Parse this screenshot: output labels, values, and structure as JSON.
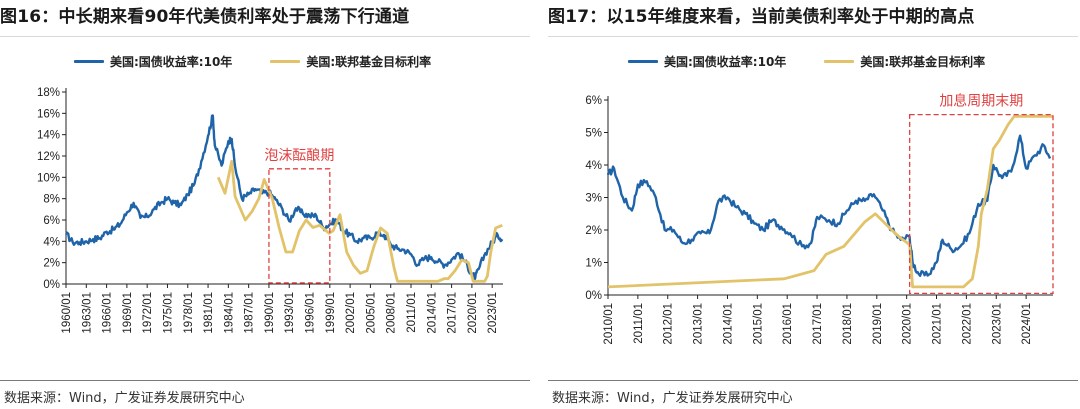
{
  "colors": {
    "ten_year": "#1f64a8",
    "fed_funds": "#e2c36a",
    "annotation": "#e04040"
  },
  "chart_data": [
    {
      "type": "line",
      "title": "图16：中长期来看90年代美债利率处于震荡下行通道",
      "x_tick_labels": [
        "1960/01",
        "1963/01",
        "1966/01",
        "1969/01",
        "1972/01",
        "1975/01",
        "1978/01",
        "1981/01",
        "1984/01",
        "1987/01",
        "1990/01",
        "1993/01",
        "1996/01",
        "1999/01",
        "2002/01",
        "2005/01",
        "2008/01",
        "2011/01",
        "2014/01",
        "2017/01",
        "2020/01",
        "2023/01"
      ],
      "y_tick_labels": [
        "0%",
        "2%",
        "4%",
        "6%",
        "8%",
        "10%",
        "12%",
        "14%",
        "16%",
        "18%"
      ],
      "xlim": [
        1960.0,
        2024.6
      ],
      "ylim": [
        0,
        18
      ],
      "legend": "top",
      "series": [
        {
          "name": "美国:国债收益率:10年",
          "color": "#1f64a8",
          "x": [
            1960,
            1961,
            1962,
            1963,
            1964,
            1965,
            1966,
            1967,
            1968,
            1969,
            1970,
            1971,
            1972,
            1973,
            1974,
            1975,
            1976,
            1977,
            1978,
            1979,
            1980,
            1981,
            1981.7,
            1982,
            1983,
            1984,
            1984.5,
            1985,
            1986,
            1987,
            1988,
            1989,
            1990,
            1991,
            1992,
            1993,
            1994,
            1995,
            1996,
            1997,
            1998,
            1999,
            2000,
            2001,
            2002,
            2003,
            2004,
            2005,
            2006,
            2007,
            2008,
            2009,
            2010,
            2011,
            2012,
            2013,
            2014,
            2015,
            2016,
            2017,
            2018,
            2019,
            2020,
            2020.5,
            2021,
            2022,
            2023,
            2023.8,
            2024.5
          ],
          "y": [
            4.7,
            3.9,
            3.9,
            4.0,
            4.2,
            4.3,
            4.9,
            5.1,
            5.6,
            6.7,
            7.6,
            6.2,
            6.3,
            7.0,
            7.6,
            8.0,
            7.6,
            7.4,
            8.4,
            9.4,
            11.5,
            13.9,
            15.8,
            13.0,
            11.1,
            13.4,
            13.6,
            11.0,
            8.0,
            8.4,
            8.9,
            8.5,
            8.6,
            7.9,
            7.0,
            5.9,
            7.1,
            6.6,
            6.4,
            6.4,
            5.3,
            5.6,
            6.0,
            5.0,
            4.6,
            4.0,
            4.3,
            4.3,
            4.8,
            4.6,
            3.7,
            3.3,
            3.2,
            2.8,
            1.8,
            2.4,
            2.5,
            2.1,
            1.8,
            2.3,
            2.9,
            2.1,
            0.9,
            0.6,
            1.4,
            2.9,
            3.9,
            4.6,
            4.2
          ]
        },
        {
          "name": "美国:联邦基金目标利率",
          "color": "#e2c36a",
          "x": [
            1982.5,
            1983.5,
            1984.5,
            1985,
            1986.5,
            1987.5,
            1988.5,
            1989.3,
            1990.5,
            1991.5,
            1992.5,
            1993.5,
            1994.5,
            1995.5,
            1996.5,
            1997.5,
            1998.9,
            1999.5,
            2000.5,
            2001.5,
            2002.5,
            2003.5,
            2004.5,
            2005.5,
            2006.5,
            2007.5,
            2008.5,
            2009,
            2010,
            2011,
            2012,
            2013,
            2014,
            2015,
            2015.9,
            2016.5,
            2017.5,
            2018.5,
            2019.5,
            2020.2,
            2021,
            2021.9,
            2022.3,
            2022.8,
            2023.5,
            2024.5
          ],
          "y": [
            10.0,
            8.5,
            11.5,
            8.2,
            6.0,
            6.8,
            8.0,
            9.8,
            8.0,
            5.3,
            3.0,
            3.0,
            5.0,
            6.0,
            5.3,
            5.5,
            4.75,
            5.0,
            6.5,
            3.0,
            1.75,
            1.0,
            1.25,
            3.5,
            5.25,
            4.75,
            1.5,
            0.25,
            0.25,
            0.25,
            0.25,
            0.25,
            0.25,
            0.25,
            0.5,
            0.5,
            1.25,
            2.25,
            2.0,
            0.25,
            0.25,
            0.25,
            0.75,
            3.0,
            5.25,
            5.5
          ]
        }
      ],
      "annotations": [
        {
          "text": "泡沫酝酿期",
          "box_x": [
            1990.0,
            1999.0
          ],
          "box_y": [
            0.1,
            10.8
          ]
        }
      ]
    },
    {
      "type": "line",
      "title": "图17：以15年维度来看，当前美债利率处于中期的高点",
      "x_tick_labels": [
        "2010/01",
        "2011/01",
        "2012/01",
        "2013/01",
        "2014/01",
        "2015/01",
        "2016/01",
        "2017/01",
        "2018/01",
        "2019/01",
        "2020/01",
        "2021/01",
        "2022/01",
        "2023/01",
        "2024/01"
      ],
      "y_tick_labels": [
        "0%",
        "1%",
        "2%",
        "3%",
        "4%",
        "5%",
        "6%"
      ],
      "xlim": [
        2010.0,
        2024.9
      ],
      "ylim": [
        0,
        6
      ],
      "legend": "top",
      "series": [
        {
          "name": "美国:国债收益率:10年",
          "color": "#1f64a8",
          "x": [
            2010,
            2010.2,
            2010.5,
            2010.8,
            2011,
            2011.3,
            2011.6,
            2011.9,
            2012.2,
            2012.5,
            2012.8,
            2013.1,
            2013.4,
            2013.7,
            2014,
            2014.3,
            2014.6,
            2014.9,
            2015.2,
            2015.5,
            2015.8,
            2016.1,
            2016.5,
            2016.8,
            2017,
            2017.4,
            2017.7,
            2018,
            2018.3,
            2018.6,
            2018.9,
            2019.2,
            2019.5,
            2019.8,
            2020.1,
            2020.2,
            2020.4,
            2020.7,
            2021,
            2021.2,
            2021.5,
            2021.8,
            2022.1,
            2022.4,
            2022.7,
            2022.9,
            2023.2,
            2023.5,
            2023.8,
            2024,
            2024.3,
            2024.6,
            2024.8
          ],
          "y": [
            3.7,
            3.9,
            3.0,
            2.6,
            3.4,
            3.5,
            3.0,
            2.0,
            2.0,
            1.6,
            1.7,
            1.9,
            1.9,
            2.9,
            3.0,
            2.7,
            2.5,
            2.2,
            2.0,
            2.3,
            2.1,
            1.9,
            1.5,
            1.6,
            2.4,
            2.3,
            2.2,
            2.6,
            2.9,
            2.9,
            3.1,
            2.6,
            2.0,
            1.7,
            1.8,
            1.0,
            0.65,
            0.6,
            1.0,
            1.7,
            1.4,
            1.5,
            1.9,
            2.8,
            2.9,
            4.0,
            3.6,
            3.8,
            4.9,
            3.9,
            4.3,
            4.6,
            4.2
          ]
        },
        {
          "name": "美国:联邦基金目标利率",
          "color": "#e2c36a",
          "x": [
            2010,
            2015.9,
            2016.9,
            2017.3,
            2017.9,
            2018.6,
            2018.95,
            2019.5,
            2019.8,
            2020.1,
            2020.2,
            2021,
            2021.9,
            2022.2,
            2022.4,
            2022.5,
            2022.7,
            2022.9,
            2023.1,
            2023.4,
            2023.6,
            2024.6,
            2024.9
          ],
          "y": [
            0.25,
            0.5,
            0.75,
            1.25,
            1.5,
            2.25,
            2.5,
            2.0,
            1.75,
            1.55,
            0.25,
            0.25,
            0.25,
            0.5,
            1.5,
            2.5,
            3.25,
            4.5,
            4.75,
            5.25,
            5.5,
            5.5,
            5.5
          ]
        }
      ],
      "annotations": [
        {
          "text": "加息周期末期",
          "box_x": [
            2020.1,
            2024.9
          ],
          "box_y": [
            0.05,
            5.55
          ]
        }
      ]
    }
  ],
  "left": {
    "title": "图16：中长期来看90年代美债利率处于震荡下行通道",
    "legend": {
      "item1": "美国:国债收益率:10年",
      "item2": "美国:联邦基金目标利率"
    },
    "annotation": "泡沫酝酿期",
    "source": "数据来源：Wind，广发证券发展研究中心"
  },
  "right": {
    "title": "图17：以15年维度来看，当前美债利率处于中期的高点",
    "legend": {
      "item1": "美国:国债收益率:10年",
      "item2": "美国:联邦基金目标利率"
    },
    "annotation": "加息周期末期",
    "source": "数据来源：Wind，广发证券发展研究中心"
  }
}
